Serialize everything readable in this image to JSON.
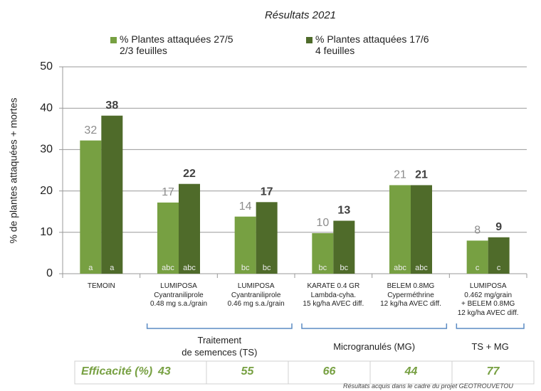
{
  "chart_data": {
    "type": "bar",
    "title": "Résultats 2021",
    "y_label": "% de plantes attaquées + mortes",
    "categories": [
      "TEMOIN",
      "LUMIPOSA\nCyantraniliprole\n0.48 mg s.a./grain",
      "LUMIPOSA\nCyantraniliprole\n0.46 mg s.a./grain",
      "KARATE 0.4 GR\nLambda-cyha.\n15 kg/ha AVEC diff.",
      "BELEM 0.8MG\nCyperméthrine\n12 kg/ha AVEC diff.",
      "LUMIPOSA\n0.462 mg/grain\n+ BELEM 0.8MG\n12 kg/ha AVEC diff."
    ],
    "series": [
      {
        "name": "% Plantes attaquées 27/5\n2/3 feuilles",
        "color": "#77a042",
        "values": [
          32.2,
          17.2,
          13.8,
          9.8,
          21.4,
          8.0
        ],
        "value_labels": [
          "32",
          "17",
          "14",
          "10",
          "21",
          "8"
        ],
        "letters": [
          "a",
          "abc",
          "bc",
          "bc",
          "abc",
          "c"
        ]
      },
      {
        "name": "% Plantes attaquées 17/6\n4 feuilles",
        "color": "#4f6b2a",
        "values": [
          38.2,
          21.7,
          17.3,
          12.8,
          21.4,
          8.8
        ],
        "value_labels": [
          "38",
          "22",
          "17",
          "13",
          "21",
          "9"
        ],
        "letters": [
          "a",
          "abc",
          "bc",
          "bc",
          "abc",
          "c"
        ]
      }
    ],
    "ylim": [
      0,
      50
    ],
    "yticks": [
      0,
      10,
      20,
      30,
      40,
      50
    ],
    "grid": true,
    "groups": [
      "Traitement\nde semences (TS)",
      "Microgranulés (MG)",
      "TS + MG"
    ],
    "efficacy_label": "Efficacité (%)",
    "efficacy": [
      43,
      55,
      66,
      44,
      77
    ],
    "footnote": "Résultats acquis dans le cadre du projet GEOTROUVETOU"
  }
}
